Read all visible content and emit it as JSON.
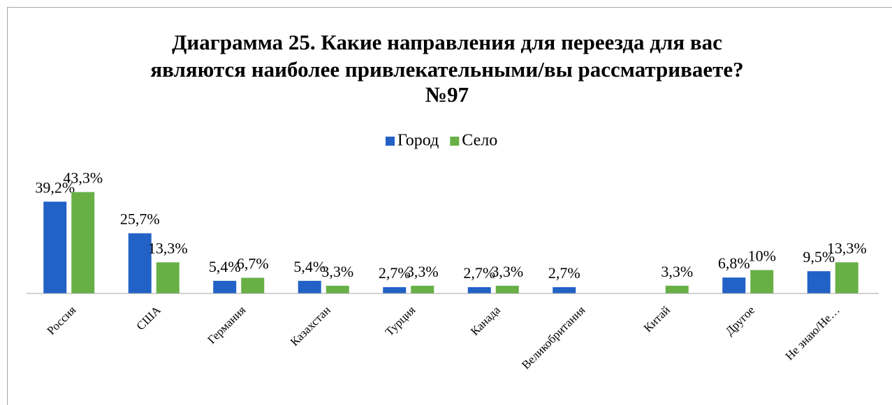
{
  "chart_data": {
    "type": "bar",
    "title": [
      "Диаграмма 25. Какие направления для переезда для вас",
      "являются наиболее привлекательными/вы рассматриваете?",
      "№97"
    ],
    "categories": [
      "Россия",
      "США",
      "Германия",
      "Казахстан",
      "Турция",
      "Канада",
      "Великобритания",
      "Китай",
      "Другое",
      "Не знаю/Не…"
    ],
    "series": [
      {
        "name": "Город",
        "color": "#2262c6",
        "values": [
          39.2,
          25.7,
          5.4,
          5.4,
          2.7,
          2.7,
          2.7,
          null,
          6.8,
          9.5
        ],
        "value_labels": [
          "39,2%",
          "25,7%",
          "5,4%",
          "5,4%",
          "2,7%",
          "2,7%",
          "2,7%",
          null,
          "6,8%",
          "9,5%"
        ]
      },
      {
        "name": "Село",
        "color": "#68b046",
        "values": [
          43.3,
          13.3,
          6.7,
          3.3,
          3.3,
          3.3,
          null,
          3.3,
          10,
          13.3
        ],
        "value_labels": [
          "43,3%",
          "13,3%",
          "6,7%",
          "3,3%",
          "3,3%",
          "3,3%",
          null,
          "3,3%",
          "10%",
          "13,3%"
        ]
      }
    ],
    "ylim": [
      0,
      50
    ],
    "legend": "top"
  }
}
